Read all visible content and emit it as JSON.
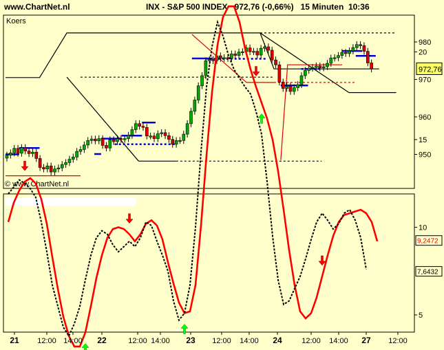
{
  "header": {
    "site": "www.ChartNet.nl",
    "symbol": "INX",
    "name": "S&P 500 INDEX",
    "price": "972,76",
    "change": "(-0,66%)",
    "interval": "15 Minuten",
    "time": "10:36"
  },
  "colors": {
    "background": "#FFFFCC",
    "up_candle": "#00AA00",
    "down_candle": "#DD0000",
    "support": "#0000DD",
    "oscillator_main": "#FF0000",
    "oscillator_signal": "#000000",
    "buy_arrow": "#00FF00",
    "sell_arrow": "#FF0000"
  },
  "chart_data": [
    {
      "type": "candlestick",
      "title": "Koers",
      "watermark": "© www.ChartNet.nl",
      "y_ticks": [
        "950",
        "960",
        "970",
        "980"
      ],
      "ylim": [
        943,
        985
      ],
      "last_label": "972,76",
      "grid": false,
      "close": [
        949.8,
        950.4,
        951.6,
        950.3,
        951.8,
        950.9,
        950.2,
        950.6,
        948.9,
        946.5,
        946.1,
        946.9,
        945.3,
        946.1,
        946.4,
        947.3,
        947.8,
        948.7,
        949.3,
        950.8,
        951.3,
        952.5,
        953.7,
        954.1,
        953.6,
        954.2,
        952.4,
        951.7,
        953.9,
        953.4,
        954.2,
        954.0,
        954.2,
        955.1,
        956.6,
        958.2,
        957.5,
        957.2,
        954.9,
        954.9,
        954.2,
        955.5,
        955.8,
        955.0,
        954.0,
        952.7,
        953.7,
        953.7,
        955.4,
        958.2,
        961.5,
        964.5,
        968.3,
        971.0,
        975.0,
        975.3,
        975.0,
        976.3,
        975.6,
        975.8,
        975.6,
        976.8,
        976.4,
        977.3,
        977.4,
        978.4,
        977.4,
        977.5,
        976.5,
        978.3,
        978.7,
        977.8,
        975.2,
        973.9,
        969.3,
        967.6,
        968.2,
        966.8,
        967.8,
        968.6,
        971.0,
        972.4,
        973.0,
        973.2,
        973.6,
        973.1,
        973.4,
        974.3,
        975.7,
        975.8,
        976.4,
        977.2,
        976.9,
        977.6,
        978.5,
        979.3,
        979.0,
        977.5,
        974.4,
        972.8
      ],
      "lines": [
        {
          "name": "",
          "style": "solid",
          "color": "#000000",
          "points": [
            [
              "21 09:30",
              970.5
            ],
            [
              "21 12:00",
              970.5
            ],
            [
              "21 14:00",
              982.4
            ],
            [
              "23 15:00",
              982.4
            ],
            [
              "24 09:30",
              972.8
            ],
            [
              "27 10:45",
              972.8
            ]
          ]
        },
        {
          "name": "",
          "style": "dotted",
          "color": "#000000",
          "points": [
            [
              "21 15:00",
              970.6
            ],
            [
              "24 09:30",
              970.6
            ]
          ]
        },
        {
          "name": "",
          "style": "dotted",
          "color": "#000000",
          "points": [
            [
              "23 15:00",
              982.4
            ],
            [
              "27 12:00",
              982.4
            ]
          ]
        },
        {
          "name": "",
          "style": "solid",
          "color": "#000000",
          "points": [
            [
              "22 12:45",
              948.2
            ],
            [
              "22 15:30",
              948.2
            ]
          ]
        },
        {
          "name": "",
          "style": "dotted",
          "color": "#000000",
          "points": [
            [
              "22 15:30",
              948.2
            ],
            [
              "24 13:00",
              948.2
            ]
          ]
        },
        {
          "name": "",
          "style": "solid",
          "color": "#000000",
          "points": [
            [
              "24 15:00",
              966.5
            ],
            [
              "27 12:00",
              966.5
            ]
          ]
        },
        {
          "name": "",
          "style": "solid",
          "color": "#000000",
          "points": [
            [
              "21 14:00",
              970.6
            ],
            [
              "22 12:45",
              948.2
            ]
          ]
        },
        {
          "name": "",
          "style": "solid",
          "color": "#000000",
          "points": [
            [
              "23 15:00",
              982.4
            ],
            [
              "24 15:00",
              966.5
            ]
          ]
        },
        {
          "name": "",
          "style": "solid",
          "color": "#DD0000",
          "points": [
            [
              "23 10:00",
              982.0
            ],
            [
              "23 14:00",
              969.2
            ],
            [
              "24 09:30",
              969.2
            ]
          ]
        },
        {
          "name": "",
          "style": "dotted",
          "color": "#DD0000",
          "points": [
            [
              "24 09:30",
              969.2
            ],
            [
              "24 15:30",
              969.2
            ]
          ]
        },
        {
          "name": "",
          "style": "solid",
          "color": "#DD0000",
          "points": [
            [
              "24 10:00",
              948.5
            ],
            [
              "24 10:30",
              973.9
            ],
            [
              "24 14:30",
              973.9
            ]
          ]
        },
        {
          "name": "",
          "style": "solid",
          "color": "#DD0000",
          "points": [
            [
              "21 09:30",
              944.3
            ],
            [
              "21 15:00",
              944.3
            ]
          ]
        },
        {
          "name": "",
          "style": "solid",
          "color": "#0000DD",
          "points": [
            [
              "21 09:30",
              950.0
            ],
            [
              "21 10:30",
              950.0
            ]
          ]
        },
        {
          "name": "",
          "style": "solid",
          "color": "#0000DD",
          "points": [
            [
              "21 10:30",
              951.7
            ],
            [
              "21 12:00",
              951.7
            ]
          ]
        },
        {
          "name": "",
          "style": "solid",
          "color": "#0000DD",
          "points": [
            [
              "22 09:30",
              950.1
            ],
            [
              "22 10:00",
              950.1
            ]
          ]
        },
        {
          "name": "",
          "style": "solid",
          "color": "#0000DD",
          "points": [
            [
              "22 10:00",
              954.2
            ],
            [
              "22 11:30",
              954.2
            ]
          ]
        },
        {
          "name": "",
          "style": "solid",
          "color": "#0000DD",
          "points": [
            [
              "22 11:30",
              955.0
            ],
            [
              "22 13:00",
              955.0
            ]
          ]
        },
        {
          "name": "",
          "style": "solid",
          "color": "#0000DD",
          "points": [
            [
              "22 13:00",
              958.5
            ],
            [
              "22 14:00",
              958.5
            ]
          ]
        },
        {
          "name": "",
          "style": "dotted",
          "color": "#0000DD",
          "points": [
            [
              "22 11:00",
              952.7
            ],
            [
              "22 15:30",
              952.7
            ]
          ]
        },
        {
          "name": "",
          "style": "solid",
          "color": "#0000DD",
          "points": [
            [
              "23 10:00",
              975.6
            ],
            [
              "23 11:30",
              975.6
            ]
          ]
        },
        {
          "name": "",
          "style": "dotted",
          "color": "#0000DD",
          "points": [
            [
              "23 11:00",
              975.5
            ],
            [
              "23 15:30",
              975.5
            ]
          ]
        },
        {
          "name": "",
          "style": "solid",
          "color": "#0000DD",
          "points": [
            [
              "24 10:00",
              968.4
            ],
            [
              "24 12:00",
              968.4
            ]
          ]
        },
        {
          "name": "",
          "style": "dotted",
          "color": "#0000DD",
          "points": [
            [
              "24 11:30",
              972.8
            ],
            [
              "24 13:00",
              972.8
            ]
          ]
        },
        {
          "name": "",
          "style": "solid",
          "color": "#0000DD",
          "points": [
            [
              "24 14:30",
              977.6
            ],
            [
              "27 09:30",
              977.6
            ]
          ]
        },
        {
          "name": "",
          "style": "solid",
          "color": "#0000DD",
          "points": [
            [
              "24 15:30",
              976.3
            ],
            [
              "27 10:30",
              976.3
            ]
          ]
        }
      ]
    },
    {
      "type": "line",
      "y_ticks": [
        "5",
        "10",
        "15",
        "20"
      ],
      "ylim": [
        1,
        25
      ],
      "x_ticks": [
        "21",
        "12:00",
        "14:00",
        "22",
        "12:00",
        "14:00",
        "23",
        "12:00",
        "14:00",
        "24",
        "12:00",
        "14:00",
        "27",
        "12:00"
      ],
      "value_labels": [
        "9,2472",
        "7,6432"
      ],
      "series": [
        {
          "name": "",
          "style": "solid",
          "color": "#FF0000",
          "values": [
            10.3,
            11.4,
            12.1,
            12.6,
            12.8,
            12.5,
            11.6,
            10.2,
            8.3,
            6.5,
            4.9,
            3.8,
            3.2,
            3.2,
            4.0,
            5.5,
            7.1,
            8.4,
            9.4,
            9.9,
            10.0,
            9.9,
            9.6,
            9.2,
            9.6,
            10.2,
            10.4,
            10.1,
            9.3,
            8.0,
            6.8,
            5.7,
            5.1,
            5.2,
            6.7,
            10.1,
            14.1,
            17.7,
            20.4,
            22.0,
            22.6,
            22.6,
            21.7,
            20.2,
            19.0,
            18.0,
            17.1,
            16.2,
            15.0,
            13.2,
            11.0,
            8.7,
            6.7,
            5.2,
            4.8,
            5.1,
            6.0,
            7.2,
            8.4,
            9.5,
            10.3,
            10.7,
            10.8,
            10.9,
            11.0,
            10.8,
            10.3,
            9.2
          ]
        },
        {
          "name": "",
          "style": "dotted",
          "color": "#000000",
          "values": [
            11.9,
            12.3,
            12.7,
            12.5,
            12.2,
            11.7,
            10.3,
            8.6,
            6.7,
            5.5,
            4.3,
            3.8,
            4.5,
            5.5,
            7.0,
            8.4,
            9.4,
            9.8,
            9.6,
            9.0,
            8.6,
            8.9,
            9.2,
            8.9,
            9.4,
            10.3,
            10.1,
            9.2,
            8.4,
            7.5,
            5.8,
            4.7,
            5.1,
            6.7,
            10.0,
            14.3,
            18.0,
            20.3,
            21.7,
            20.9,
            19.8,
            19.0,
            18.5,
            18.0,
            17.6,
            16.6,
            15.3,
            12.6,
            9.5,
            7.0,
            5.6,
            5.8,
            6.5,
            7.2,
            8.2,
            9.3,
            10.3,
            10.8,
            10.4,
            9.9,
            10.2,
            10.8,
            11.0,
            10.4,
            9.4,
            7.6
          ]
        }
      ],
      "buy_signals": [
        14,
        32,
        46,
        75
      ],
      "sell_signals": [
        3,
        22,
        45,
        57,
        88
      ]
    }
  ]
}
